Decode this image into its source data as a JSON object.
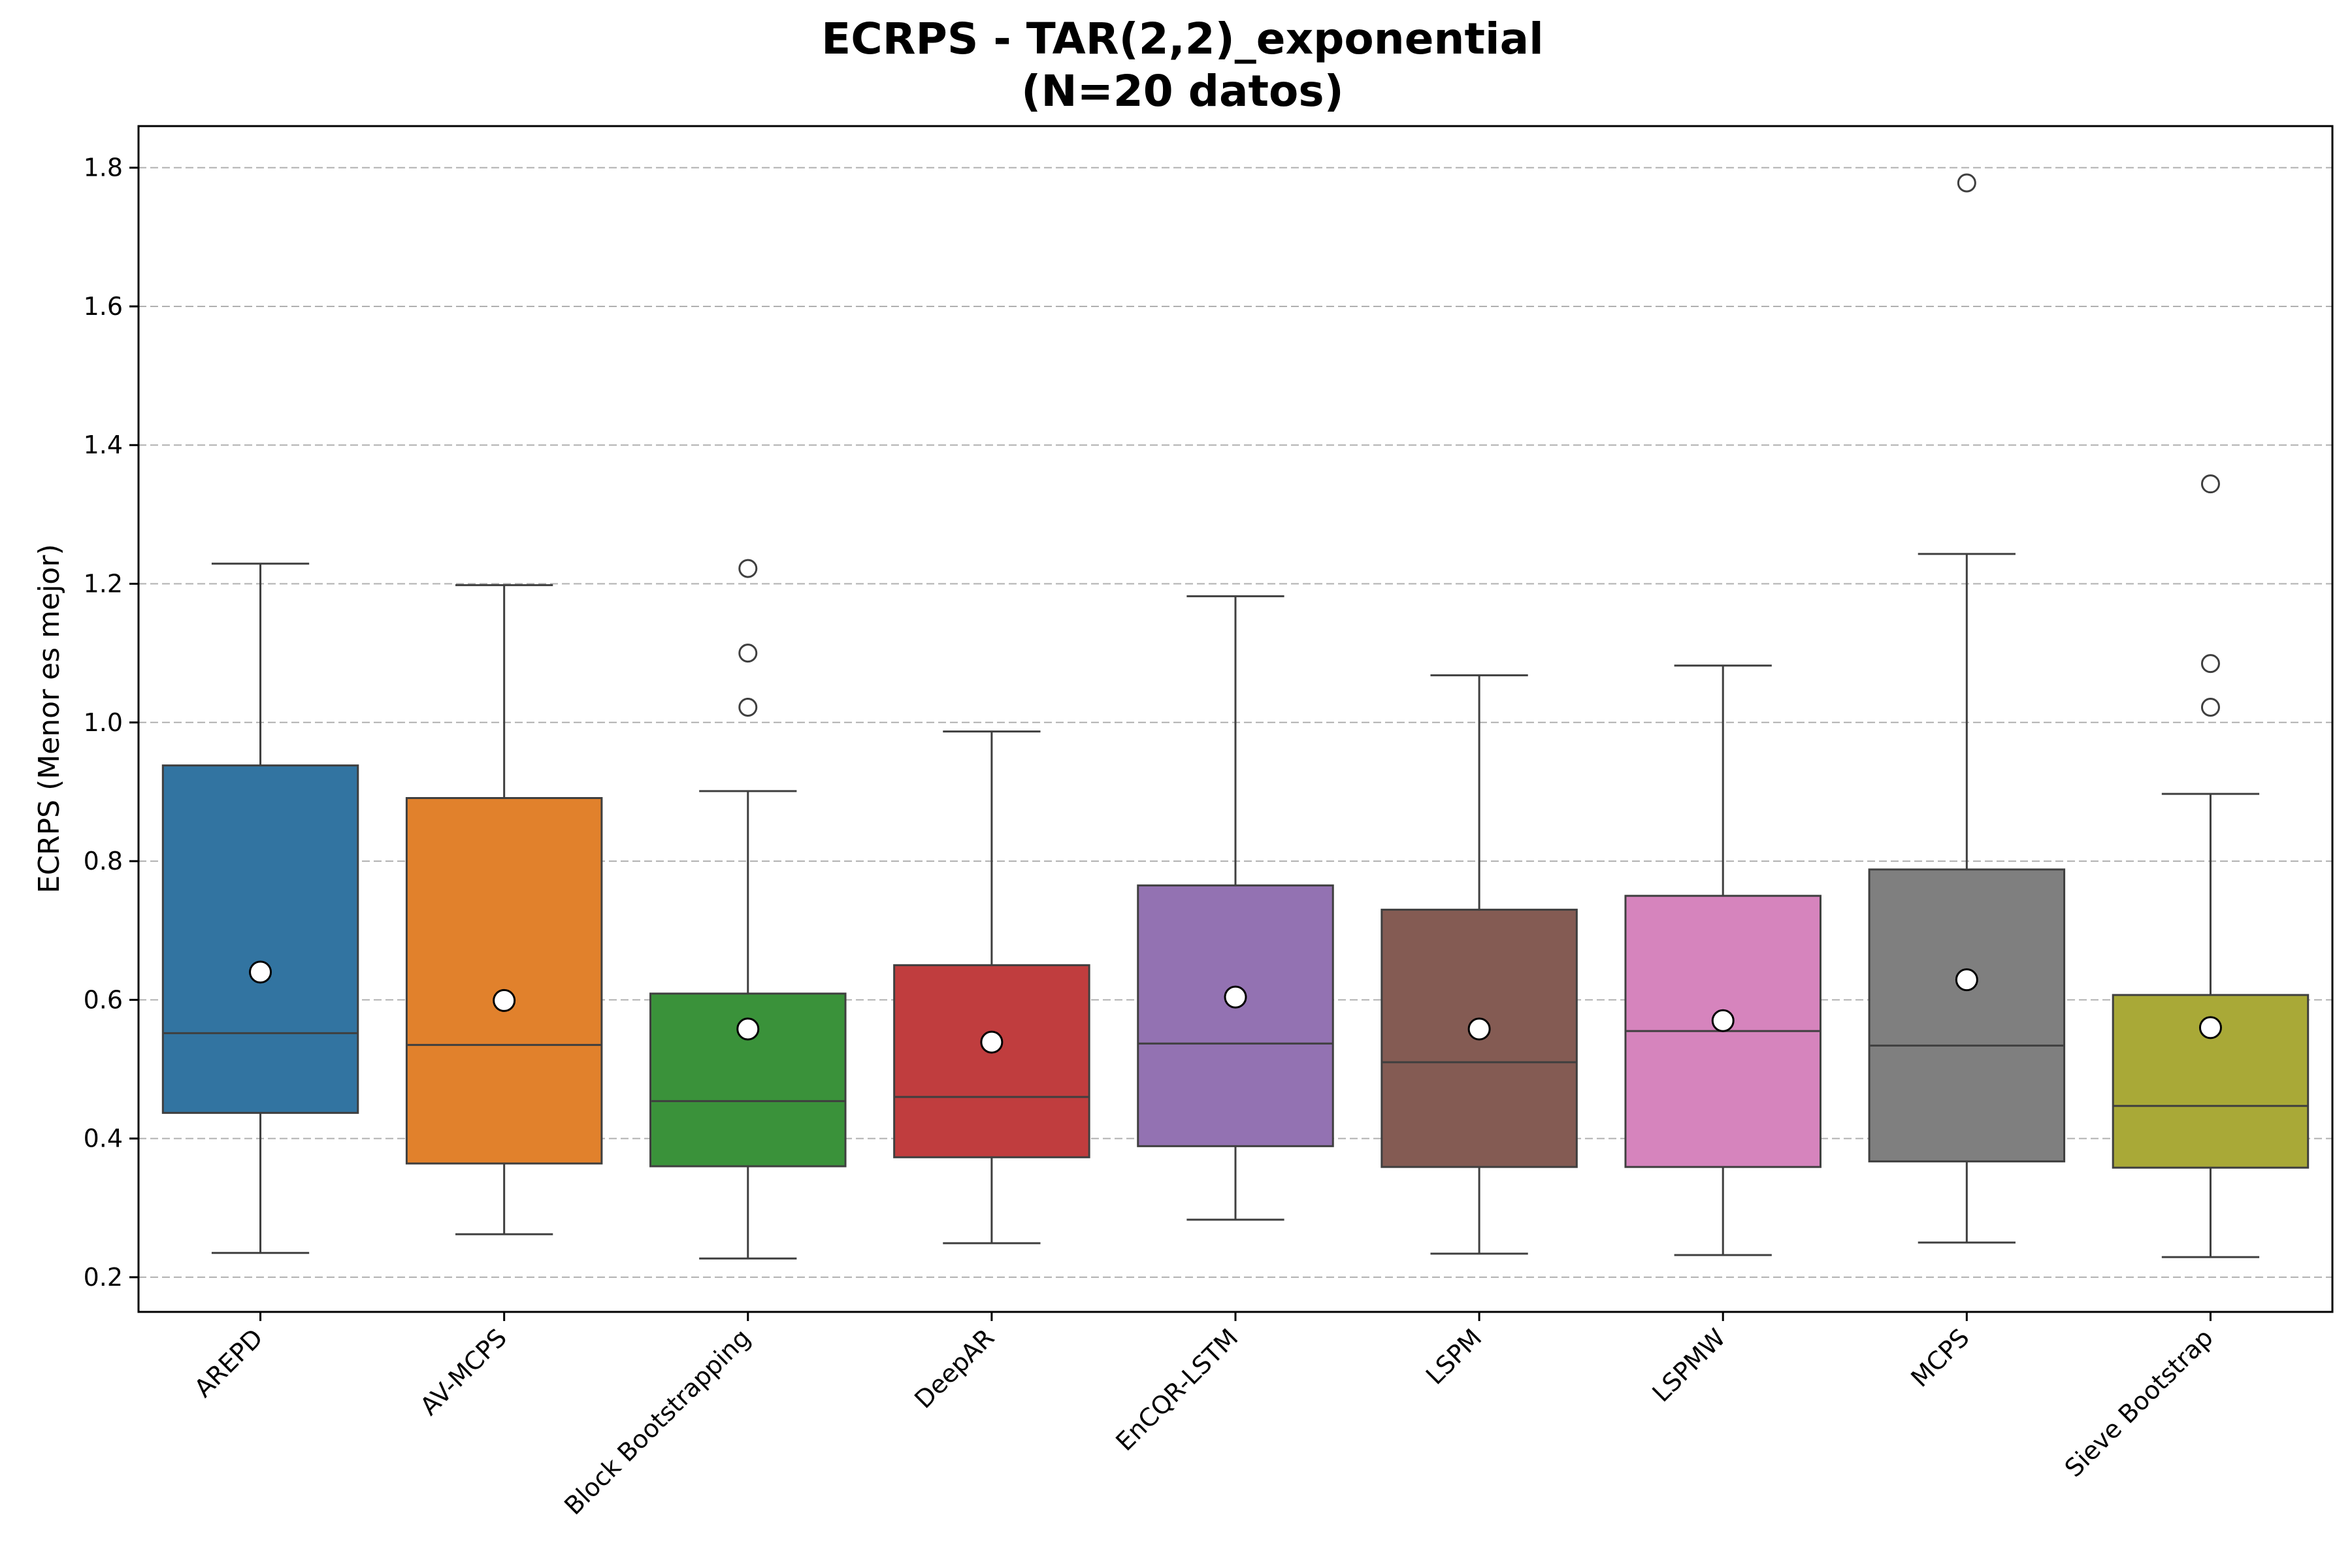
{
  "chart_data": {
    "type": "boxplot",
    "title": "ECRPS - TAR(2,2)_exponential",
    "subtitle": "(N=20 datos)",
    "xlabel": "",
    "ylabel": "ECRPS (Menor es mejor)",
    "ylim": [
      0.15,
      1.86
    ],
    "yticks": [
      "0.2",
      "0.4",
      "0.6",
      "0.8",
      "1.0",
      "1.2",
      "1.4",
      "1.6",
      "1.8"
    ],
    "grid": "y-dashed",
    "categories": [
      "AREPD",
      "AV-MCPS",
      "Block Bootstrapping",
      "DeepAR",
      "EnCQR-LSTM",
      "LSPM",
      "LSPMW",
      "MCPS",
      "Sieve Bootstrap"
    ],
    "series": [
      {
        "category": "AREPD",
        "color": "#3274a1",
        "whisker_low": 0.235,
        "q1": 0.437,
        "median": 0.552,
        "q3": 0.938,
        "whisker_high": 1.229,
        "mean": 0.64,
        "outliers": []
      },
      {
        "category": "AV-MCPS",
        "color": "#e1812c",
        "whisker_low": 0.262,
        "q1": 0.364,
        "median": 0.535,
        "q3": 0.891,
        "whisker_high": 1.198,
        "mean": 0.599,
        "outliers": []
      },
      {
        "category": "Block Bootstrapping",
        "color": "#3a923a",
        "whisker_low": 0.227,
        "q1": 0.36,
        "median": 0.454,
        "q3": 0.609,
        "whisker_high": 0.901,
        "mean": 0.558,
        "outliers": [
          1.022,
          1.1,
          1.222
        ]
      },
      {
        "category": "DeepAR",
        "color": "#c03d3e",
        "whisker_low": 0.249,
        "q1": 0.373,
        "median": 0.46,
        "q3": 0.65,
        "whisker_high": 0.987,
        "mean": 0.539,
        "outliers": []
      },
      {
        "category": "EnCQR-LSTM",
        "color": "#9372b2",
        "whisker_low": 0.283,
        "q1": 0.389,
        "median": 0.537,
        "q3": 0.765,
        "whisker_high": 1.182,
        "mean": 0.604,
        "outliers": []
      },
      {
        "category": "LSPM",
        "color": "#845b53",
        "whisker_low": 0.234,
        "q1": 0.359,
        "median": 0.51,
        "q3": 0.73,
        "whisker_high": 1.068,
        "mean": 0.558,
        "outliers": []
      },
      {
        "category": "LSPMW",
        "color": "#d684bd",
        "whisker_low": 0.232,
        "q1": 0.359,
        "median": 0.555,
        "q3": 0.75,
        "whisker_high": 1.082,
        "mean": 0.57,
        "outliers": []
      },
      {
        "category": "MCPS",
        "color": "#7f7f7f",
        "whisker_low": 0.25,
        "q1": 0.367,
        "median": 0.534,
        "q3": 0.788,
        "whisker_high": 1.243,
        "mean": 0.629,
        "outliers": [
          1.778
        ]
      },
      {
        "category": "Sieve Bootstrap",
        "color": "#a9a937",
        "whisker_low": 0.229,
        "q1": 0.358,
        "median": 0.447,
        "q3": 0.607,
        "whisker_high": 0.897,
        "mean": 0.56,
        "outliers": [
          1.022,
          1.085,
          1.344
        ]
      }
    ]
  }
}
